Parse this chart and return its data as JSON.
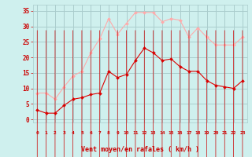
{
  "x": [
    0,
    1,
    2,
    3,
    4,
    5,
    6,
    7,
    8,
    9,
    10,
    11,
    12,
    13,
    14,
    15,
    16,
    17,
    18,
    19,
    20,
    21,
    22,
    23
  ],
  "wind_avg": [
    3,
    2,
    2,
    4.5,
    6.5,
    7,
    8,
    8.5,
    15.5,
    13.5,
    14.5,
    19,
    23,
    21.5,
    19,
    19.5,
    17,
    15.5,
    15.5,
    12.5,
    11,
    10.5,
    10,
    12.5
  ],
  "wind_gust": [
    8.5,
    8.5,
    6.5,
    10.5,
    14,
    15.5,
    21.5,
    26,
    32.5,
    27.5,
    31,
    34.5,
    34.5,
    34.5,
    31.5,
    32.5,
    32,
    26.5,
    29.5,
    26.5,
    24,
    24,
    24,
    26.5
  ],
  "avg_color": "#dd0000",
  "gust_color": "#ffaaaa",
  "bg_color": "#cff0ee",
  "grid_color": "#aacccc",
  "axis_color": "#cc0000",
  "xlabel": "Vent moyen/en rafales ( km/h )",
  "ylabel_ticks": [
    0,
    5,
    10,
    15,
    20,
    25,
    30,
    35
  ],
  "xlim": [
    -0.5,
    23.5
  ],
  "ylim": [
    -1,
    37
  ]
}
